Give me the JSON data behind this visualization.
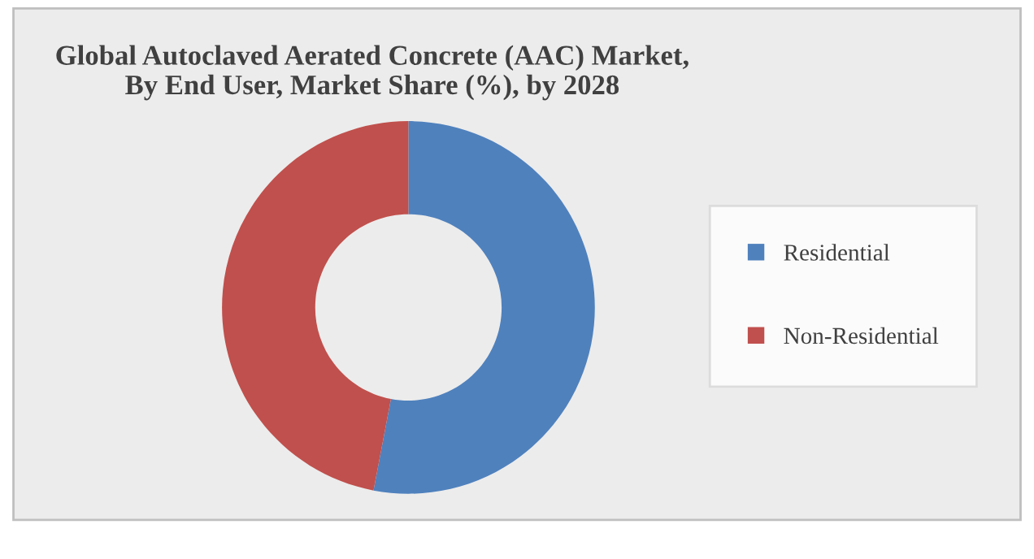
{
  "chart_data": {
    "type": "donut",
    "title": "Global Autoclaved Aerated Concrete (AAC) Market,\nBy End User, Market Share (%), by 2028",
    "categories": [
      "Residential",
      "Non-Residential"
    ],
    "values": [
      53,
      47
    ],
    "colors": [
      "#4f81bd",
      "#c0504d"
    ],
    "legend": "right"
  }
}
